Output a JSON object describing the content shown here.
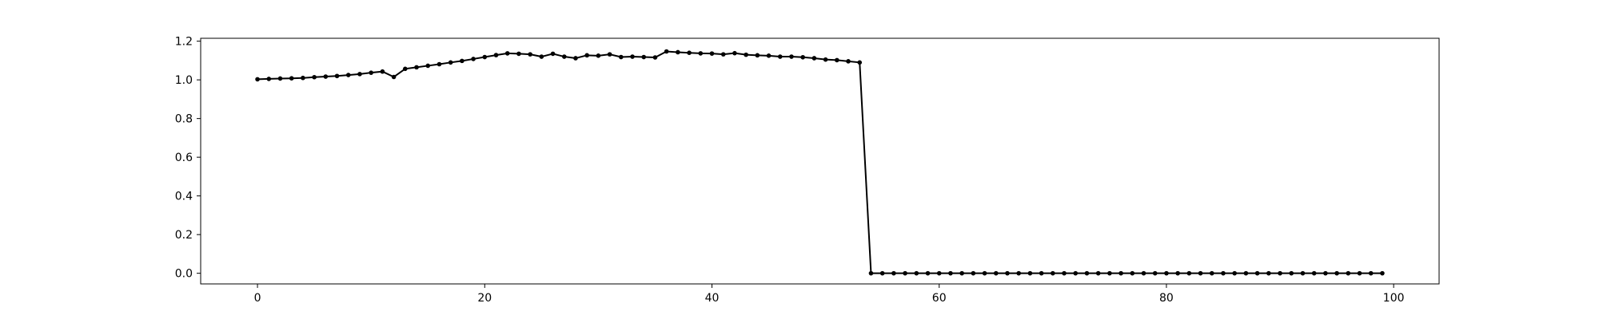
{
  "chart_data": {
    "type": "line",
    "title": "",
    "xlabel": "",
    "ylabel": "",
    "xlim": [
      -5,
      104
    ],
    "ylim": [
      -0.055,
      1.215
    ],
    "xticks": [
      0,
      20,
      40,
      60,
      80,
      100
    ],
    "xtick_labels": [
      "0",
      "20",
      "40",
      "60",
      "80",
      "100"
    ],
    "yticks": [
      0.0,
      0.2,
      0.4,
      0.6,
      0.8,
      1.0,
      1.2
    ],
    "ytick_labels": [
      "0.0",
      "0.2",
      "0.4",
      "0.6",
      "0.8",
      "1.0",
      "1.2"
    ],
    "grid": false,
    "legend": false,
    "series": [
      {
        "color": "#000000",
        "marker": "circle",
        "x": [
          0,
          1,
          2,
          3,
          4,
          5,
          6,
          7,
          8,
          9,
          10,
          11,
          12,
          13,
          14,
          15,
          16,
          17,
          18,
          19,
          20,
          21,
          22,
          23,
          24,
          25,
          26,
          27,
          28,
          29,
          30,
          31,
          32,
          33,
          34,
          35,
          36,
          37,
          38,
          39,
          40,
          41,
          42,
          43,
          44,
          45,
          46,
          47,
          48,
          49,
          50,
          51,
          52,
          53,
          54,
          55,
          56,
          57,
          58,
          59,
          60,
          61,
          62,
          63,
          64,
          65,
          66,
          67,
          68,
          69,
          70,
          71,
          72,
          73,
          74,
          75,
          76,
          77,
          78,
          79,
          80,
          81,
          82,
          83,
          84,
          85,
          86,
          87,
          88,
          89,
          90,
          91,
          92,
          93,
          94,
          95,
          96,
          97,
          98,
          99
        ],
        "values": [
          1.003,
          1.005,
          1.007,
          1.008,
          1.01,
          1.014,
          1.017,
          1.02,
          1.025,
          1.03,
          1.037,
          1.043,
          1.015,
          1.057,
          1.065,
          1.073,
          1.081,
          1.09,
          1.098,
          1.108,
          1.118,
          1.128,
          1.137,
          1.135,
          1.132,
          1.12,
          1.135,
          1.12,
          1.112,
          1.127,
          1.125,
          1.132,
          1.118,
          1.12,
          1.118,
          1.116,
          1.147,
          1.143,
          1.14,
          1.137,
          1.136,
          1.132,
          1.138,
          1.13,
          1.127,
          1.125,
          1.12,
          1.12,
          1.117,
          1.112,
          1.105,
          1.102,
          1.096,
          1.09,
          0.0,
          0.0,
          0.0,
          0.0,
          0.0,
          0.0,
          0.0,
          0.0,
          0.0,
          0.0,
          0.0,
          0.0,
          0.0,
          0.0,
          0.0,
          0.0,
          0.0,
          0.0,
          0.0,
          0.0,
          0.0,
          0.0,
          0.0,
          0.0,
          0.0,
          0.0,
          0.0,
          0.0,
          0.0,
          0.0,
          0.0,
          0.0,
          0.0,
          0.0,
          0.0,
          0.0,
          0.0,
          0.0,
          0.0,
          0.0,
          0.0,
          0.0,
          0.0,
          0.0,
          0.0,
          0.0
        ]
      }
    ]
  }
}
